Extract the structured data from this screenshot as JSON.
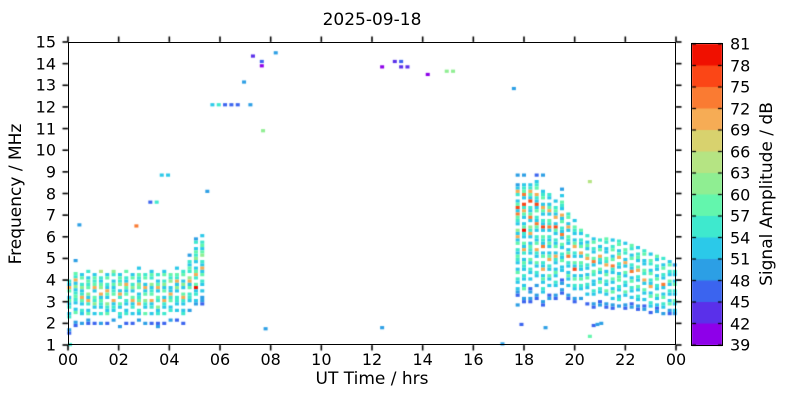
{
  "chart_data": {
    "type": "heatmap",
    "title": "2025-09-18",
    "xlabel": "UT Time / hrs",
    "ylabel": "Frequency / MHz",
    "colorbar_label": "Signal Amplitude / dB",
    "xlim": [
      0,
      24
    ],
    "ylim": [
      1,
      15
    ],
    "x_tick_labels": [
      "00",
      "02",
      "04",
      "06",
      "08",
      "10",
      "12",
      "14",
      "16",
      "18",
      "20",
      "22",
      "00"
    ],
    "y_tick_labels_top_to_bottom": [
      "15",
      "14",
      "13",
      "12",
      "11",
      "10",
      "9",
      "8",
      "7",
      "6",
      "5",
      "4",
      "3",
      "2",
      "1"
    ],
    "colorbar_tick_labels_top_to_bottom": [
      "81",
      "78",
      "75",
      "72",
      "69",
      "66",
      "63",
      "60",
      "57",
      "54",
      "51",
      "48",
      "45",
      "42",
      "39"
    ],
    "amplitude_bins_dB": [
      39,
      42,
      45,
      48,
      51,
      54,
      57,
      60,
      63,
      66,
      69,
      72,
      75,
      78,
      81
    ],
    "bin_colors_low_to_high": [
      "#8E00E9",
      "#5A30EA",
      "#3B64EF",
      "#2C9FE5",
      "#2BC9E9",
      "#3EE9CE",
      "#63F6AD",
      "#8FEE92",
      "#B5E483",
      "#D8D26E",
      "#F6AC55",
      "#FA7B32",
      "#FB4616",
      "#F01000"
    ],
    "code_legend": "codes 0-9,A-D index amplitude bins 39-42 dB (0) up to 78-81 dB (D); '.' = no echo",
    "freq_step_MHz": 0.15,
    "columns": [
      {
        "t": 0.05,
        "f_top": 3.95,
        "codes": "54A6.4645.45...32"
      },
      {
        "t": 0.3,
        "f_top": 4.9,
        "codes": "3...65A4745654.46..32"
      },
      {
        "t": 0.55,
        "f_top": 4.25,
        "codes": "46.5745A64.54..3"
      },
      {
        "t": 0.8,
        "f_top": 4.4,
        "codes": "5.4656.74A5.46.32"
      },
      {
        "t": 1.05,
        "f_top": 4.25,
        "codes": "4656A4.6574.4..2"
      },
      {
        "t": 1.3,
        "f_top": 4.4,
        "codes": "8.5467.A4654.5..3"
      },
      {
        "t": 1.55,
        "f_top": 4.25,
        "codes": "46.54A64.7546..2"
      },
      {
        "t": 1.8,
        "f_top": 4.4,
        "codes": "75.46456.A454..3"
      },
      {
        "t": 2.05,
        "f_top": 4.25,
        "codes": "4657.4A5.64.54..3"
      },
      {
        "t": 2.3,
        "f_top": 4.4,
        "codes": "6.54A646.54.45..2"
      },
      {
        "t": 2.55,
        "f_top": 4.25,
        "codes": "46.574.6A45.4..2"
      },
      {
        "t": 2.8,
        "f_top": 4.55,
        "codes": "4.65476.456A.54.3"
      },
      {
        "t": 3.05,
        "f_top": 4.25,
        "codes": "56.4A46.754.6..3"
      },
      {
        "t": 3.3,
        "f_top": 4.4,
        "codes": "465.7456.A45.4..2"
      },
      {
        "t": 3.55,
        "f_top": 4.25,
        "codes": "5.46A4.65.745..23"
      },
      {
        "t": 3.8,
        "f_top": 4.4,
        "codes": "46.5746.4A54.5..2"
      },
      {
        "t": 4.05,
        "f_top": 4.25,
        "codes": "657.44A56.45..3"
      },
      {
        "t": 4.3,
        "f_top": 4.55,
        "codes": "4.65A474.554.4..2"
      },
      {
        "t": 4.55,
        "f_top": 4.4,
        "codes": "56.474.6A54.45..2"
      },
      {
        "t": 4.8,
        "f_top": 5.15,
        "codes": "3.5465.7A46.554..3"
      },
      {
        "t": 5.05,
        "f_top": 5.9,
        "codes": "35.46574.46A5.6D45.43"
      },
      {
        "t": 5.3,
        "f_top": 6.05,
        "codes": "4.56467.54A46.54.4.332"
      },
      {
        "t": 17.75,
        "f_top": 8.85,
        "codes": "3..34A5.46C4B654.74A46.54654.46.54.432..3"
      },
      {
        "t": 18.0,
        "f_top": 8.85,
        "codes": "3..456B4.C5A64.46D54.64A5.4654.54.46..32"
      },
      {
        "t": 18.25,
        "f_top": 8.55,
        "codes": ".45A64C.546B4.75A4.4654.64.54.4..23.32"
      },
      {
        "t": 18.5,
        "f_top": 8.85,
        "codes": "2.456.A54C46.54B64.546.A54.64.54..3..32"
      },
      {
        "t": 18.75,
        "f_top": 8.1,
        "codes": "456.4A64.54C4.654B.46.54A.464.54..32"
      },
      {
        "t": 19.0,
        "f_top": 7.95,
        "codes": "54.46A4.65B4.5464.46A.54.64.4..23"
      },
      {
        "t": 19.25,
        "f_top": 7.65,
        "codes": "4.564A.4C64.546.4A54.464.54..32"
      },
      {
        "t": 19.5,
        "f_top": 8.2,
        "codes": "3.4.654.A46.54B4.64.546.44..23.32"
      },
      {
        "t": 19.75,
        "f_top": 7.05,
        "codes": "56.4A4.654.46B.54.464.4..32"
      },
      {
        "t": 20.0,
        "f_top": 6.75,
        "codes": "4.654.46A.54.64C.46.54..32"
      },
      {
        "t": 20.25,
        "f_top": 6.3,
        "codes": "64.546.A4.654.46.54..3"
      },
      {
        "t": 20.5,
        "f_top": 6.05,
        "codes": "5.464.6A.54.46.54.4..2"
      },
      {
        "t": 20.75,
        "f_top": 5.9,
        "codes": "46.54.6B4.65.44.54..32"
      },
      {
        "t": 21.0,
        "f_top": 5.85,
        "codes": "5.46.A54.64.46.54..23"
      },
      {
        "t": 21.25,
        "f_top": 5.9,
        "codes": "65.44.65A.46.54.64..32"
      },
      {
        "t": 21.5,
        "f_top": 5.85,
        "codes": "4.56.46.B54.64.46.4.32"
      },
      {
        "t": 21.75,
        "f_top": 5.8,
        "codes": "56.46A.54.466.54.45.3"
      },
      {
        "t": 22.0,
        "f_top": 5.7,
        "codes": "4.65.4A4.64.54.64..32"
      },
      {
        "t": 22.25,
        "f_top": 5.6,
        "codes": "65.46.54B.46.54.4.23"
      },
      {
        "t": 22.5,
        "f_top": 5.5,
        "codes": "4.564.6A.54.64.54.32"
      },
      {
        "t": 22.75,
        "f_top": 5.35,
        "codes": "56.44.65.A4.64.4.23"
      },
      {
        "t": 23.0,
        "f_top": 5.2,
        "codes": "4.65.46.54A.46.54.2"
      },
      {
        "t": 23.25,
        "f_top": 5.1,
        "codes": "64.54.46.54.64.423"
      },
      {
        "t": 23.5,
        "f_top": 5.0,
        "codes": "5.46.54.B4.46.54.3"
      },
      {
        "t": 23.75,
        "f_top": 4.85,
        "codes": "46.54.64.54.46.32"
      },
      {
        "t": 23.95,
        "f_top": 4.7,
        "codes": "3.54.46.54.64.43"
      }
    ],
    "points": [
      [
        0.08,
        1.02,
        "5"
      ],
      [
        0.45,
        6.55,
        "3"
      ],
      [
        2.7,
        6.5,
        "B"
      ],
      [
        3.25,
        7.6,
        "2"
      ],
      [
        3.5,
        7.6,
        "5"
      ],
      [
        3.7,
        8.85,
        "4"
      ],
      [
        3.95,
        8.85,
        "4"
      ],
      [
        5.5,
        8.1,
        "3"
      ],
      [
        5.7,
        12.1,
        "4"
      ],
      [
        5.95,
        12.1,
        "5"
      ],
      [
        6.2,
        12.1,
        "2"
      ],
      [
        6.45,
        12.1,
        "2"
      ],
      [
        6.7,
        12.1,
        "2"
      ],
      [
        7.2,
        12.1,
        "3"
      ],
      [
        6.95,
        13.15,
        "3"
      ],
      [
        7.3,
        14.35,
        "1"
      ],
      [
        7.65,
        14.1,
        "2"
      ],
      [
        7.65,
        13.9,
        "0"
      ],
      [
        8.2,
        14.5,
        "3"
      ],
      [
        7.7,
        10.9,
        "7"
      ],
      [
        12.4,
        13.85,
        "0"
      ],
      [
        12.9,
        14.1,
        "1"
      ],
      [
        13.15,
        14.1,
        "2"
      ],
      [
        13.15,
        13.85,
        "1"
      ],
      [
        13.4,
        13.85,
        "1"
      ],
      [
        14.2,
        13.5,
        "0"
      ],
      [
        14.95,
        13.65,
        "7"
      ],
      [
        15.2,
        13.65,
        "7"
      ],
      [
        17.6,
        12.85,
        "3"
      ],
      [
        7.8,
        1.75,
        "3"
      ],
      [
        12.4,
        1.8,
        "3"
      ],
      [
        17.15,
        1.05,
        "3"
      ],
      [
        18.75,
        8.85,
        "3"
      ],
      [
        20.6,
        8.55,
        "8"
      ],
      [
        17.9,
        1.95,
        "2"
      ],
      [
        18.85,
        1.8,
        "3"
      ],
      [
        20.75,
        1.9,
        "2"
      ],
      [
        20.9,
        1.95,
        "3"
      ],
      [
        20.6,
        1.4,
        "6"
      ],
      [
        21.05,
        2.0,
        "3"
      ]
    ]
  }
}
